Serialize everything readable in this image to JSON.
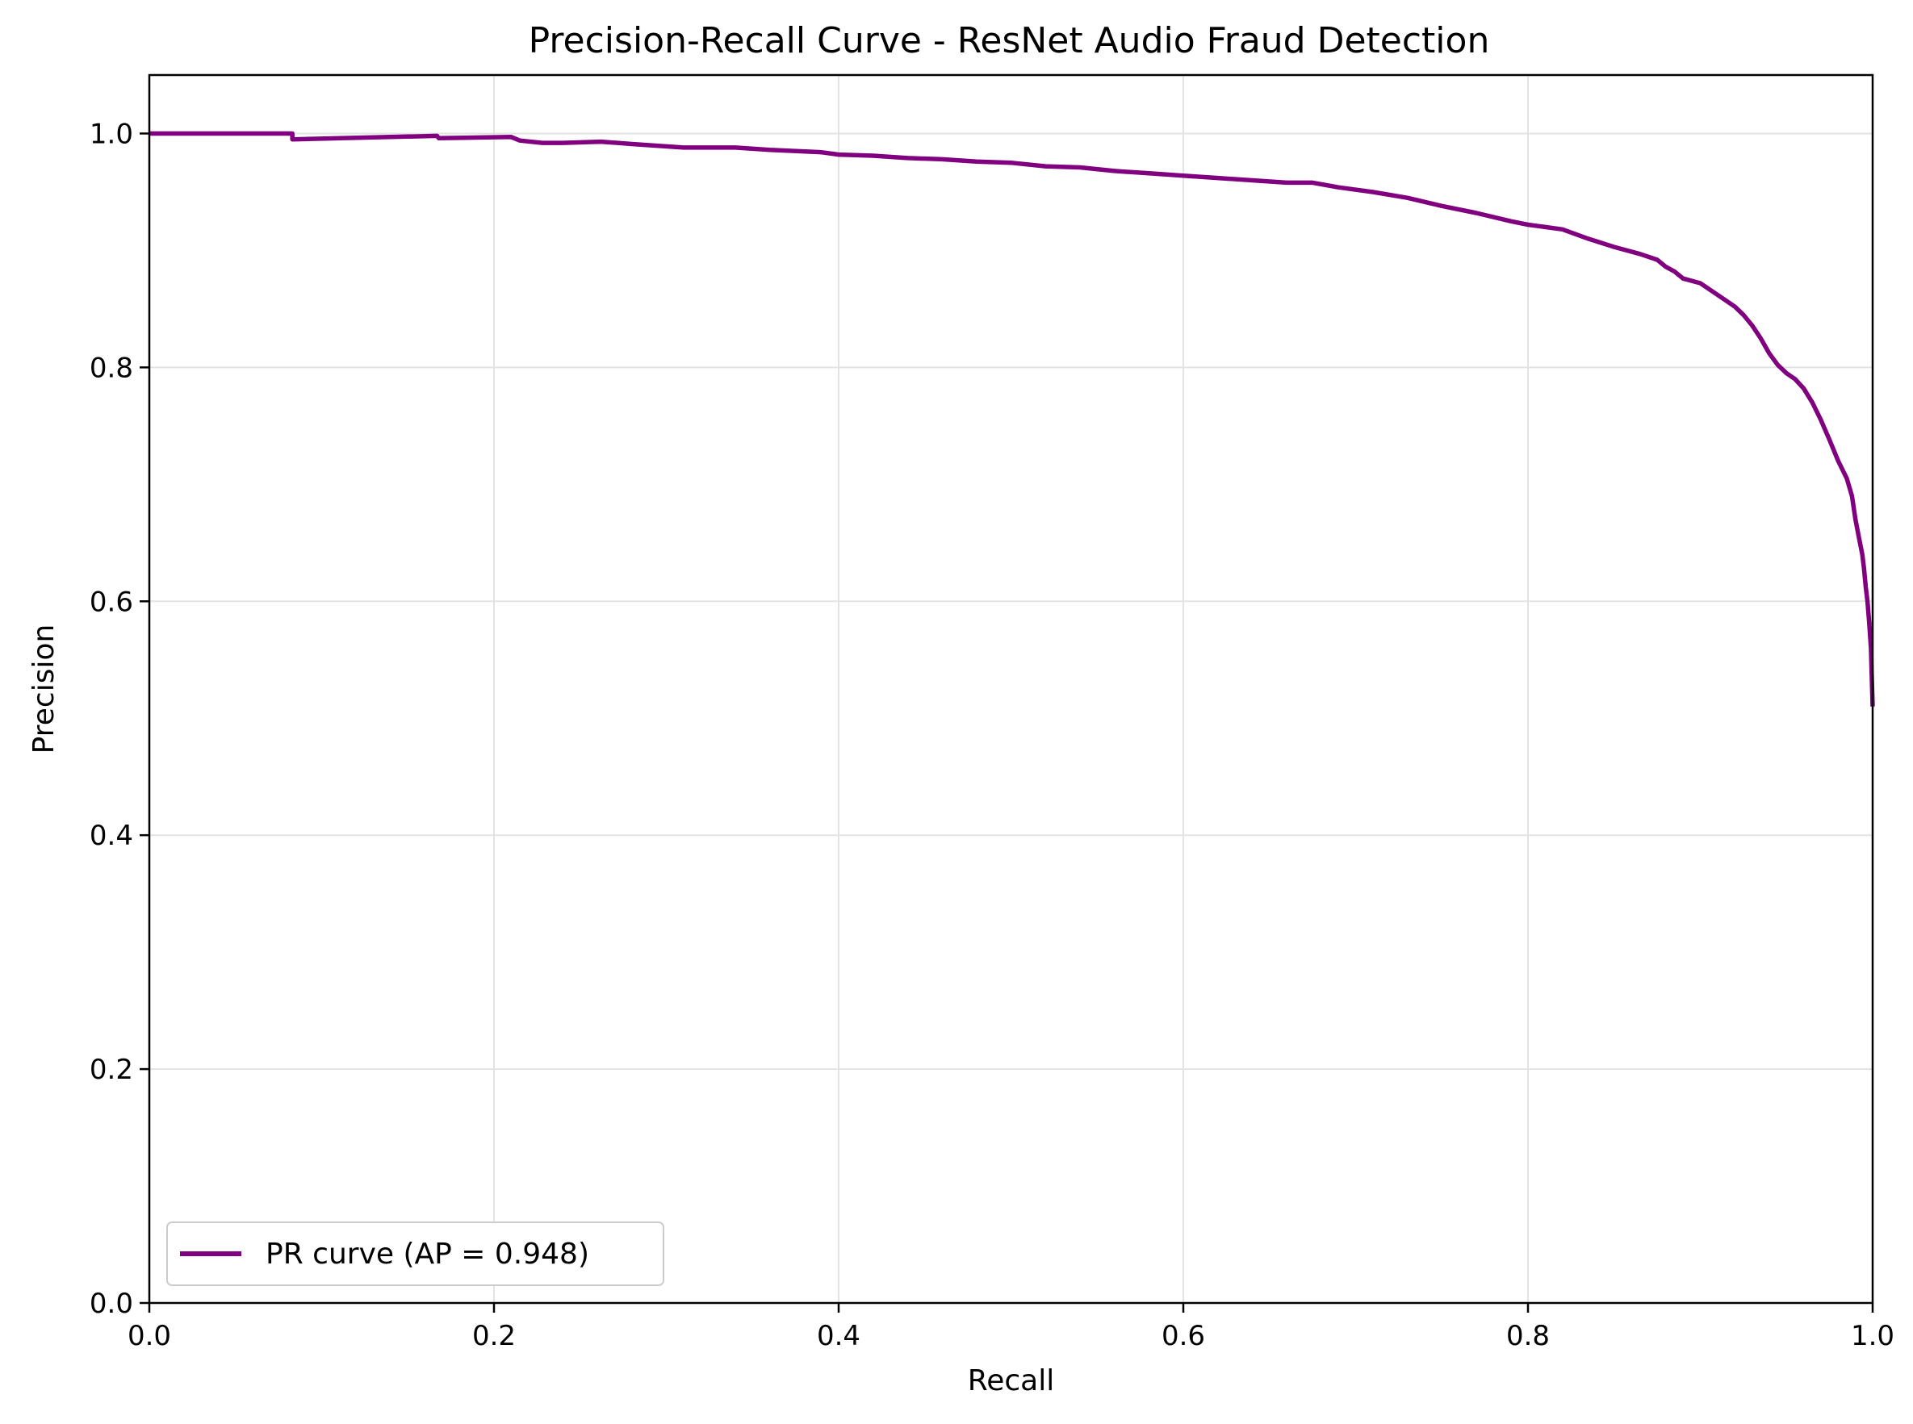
{
  "chart_data": {
    "type": "line",
    "title": "Precision-Recall Curve - ResNet Audio Fraud Detection",
    "xlabel": "Recall",
    "ylabel": "Precision",
    "xlim": [
      0.0,
      1.0
    ],
    "ylim": [
      0.0,
      1.05
    ],
    "x_ticks": [
      0.0,
      0.2,
      0.4,
      0.6,
      0.8,
      1.0
    ],
    "x_tick_labels": [
      "0.0",
      "0.2",
      "0.4",
      "0.6",
      "0.8",
      "1.0"
    ],
    "y_ticks": [
      0.0,
      0.2,
      0.4,
      0.6,
      0.8,
      1.0
    ],
    "y_tick_labels": [
      "0.0",
      "0.2",
      "0.4",
      "0.6",
      "0.8",
      "1.0"
    ],
    "grid": true,
    "legend_position": "lower-left",
    "series": [
      {
        "name": "PR curve (AP = 0.948)",
        "color": "#800080",
        "x": [
          0.0,
          0.083,
          0.083,
          0.167,
          0.168,
          0.21,
          0.215,
          0.228,
          0.24,
          0.262,
          0.28,
          0.31,
          0.34,
          0.36,
          0.39,
          0.4,
          0.42,
          0.44,
          0.46,
          0.48,
          0.5,
          0.52,
          0.54,
          0.56,
          0.58,
          0.6,
          0.62,
          0.64,
          0.66,
          0.675,
          0.69,
          0.71,
          0.73,
          0.75,
          0.77,
          0.79,
          0.8,
          0.81,
          0.82,
          0.835,
          0.85,
          0.865,
          0.875,
          0.88,
          0.885,
          0.89,
          0.9,
          0.91,
          0.92,
          0.925,
          0.93,
          0.935,
          0.94,
          0.945,
          0.95,
          0.955,
          0.96,
          0.965,
          0.97,
          0.975,
          0.98,
          0.985,
          0.988,
          0.99,
          0.992,
          0.994,
          0.995,
          0.996,
          0.997,
          0.998,
          0.999,
          1.0
        ],
        "y": [
          1.0,
          1.0,
          0.995,
          0.998,
          0.996,
          0.997,
          0.994,
          0.992,
          0.992,
          0.993,
          0.991,
          0.988,
          0.988,
          0.986,
          0.984,
          0.982,
          0.981,
          0.979,
          0.978,
          0.976,
          0.975,
          0.972,
          0.971,
          0.968,
          0.966,
          0.964,
          0.962,
          0.96,
          0.958,
          0.958,
          0.954,
          0.95,
          0.945,
          0.938,
          0.932,
          0.925,
          0.922,
          0.92,
          0.918,
          0.91,
          0.903,
          0.897,
          0.892,
          0.886,
          0.882,
          0.876,
          0.872,
          0.862,
          0.852,
          0.845,
          0.836,
          0.825,
          0.812,
          0.802,
          0.795,
          0.79,
          0.782,
          0.77,
          0.755,
          0.738,
          0.72,
          0.705,
          0.69,
          0.67,
          0.655,
          0.64,
          0.628,
          0.612,
          0.6,
          0.582,
          0.56,
          0.51
        ]
      }
    ]
  }
}
